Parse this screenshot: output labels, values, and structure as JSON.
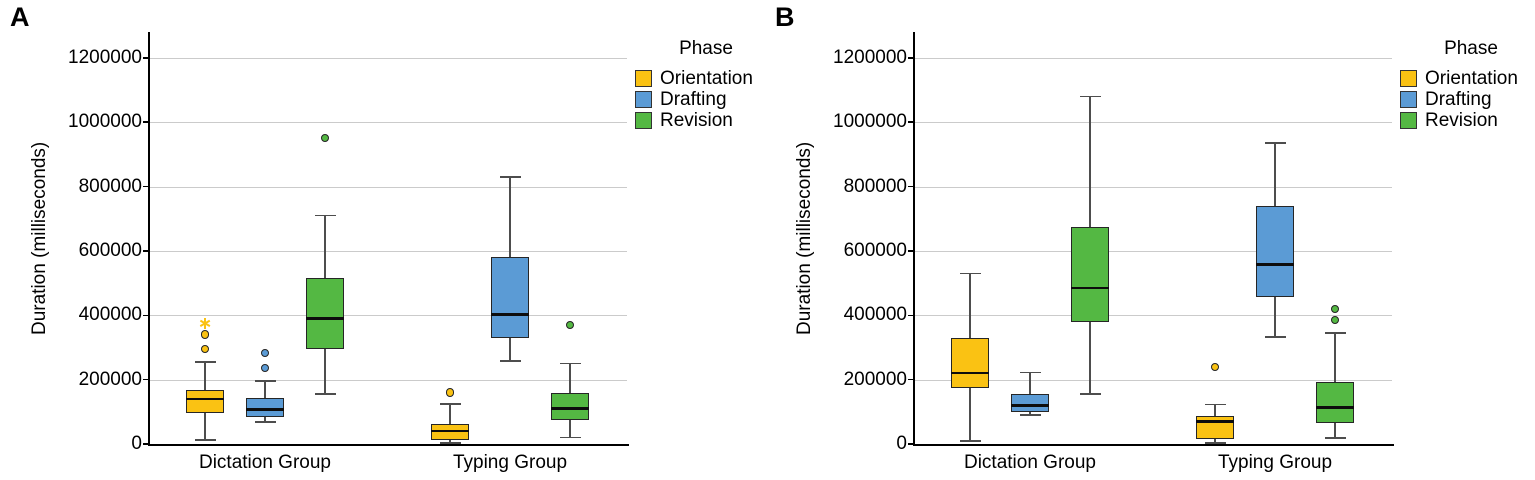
{
  "figure": {
    "background_color": "#ffffff",
    "grid_color": "#cbcbcb",
    "axis_color": "#000000",
    "whisker_color": "#4d4d4d",
    "box_border_color": "#262626",
    "median_color": "#0d0d0d"
  },
  "chart_data": [
    {
      "type": "boxplot",
      "panel": "A",
      "title": "",
      "xlabel": "",
      "ylabel": "Duration (milliseconds)",
      "ylim": [
        0,
        1280000
      ],
      "yticks": [
        0,
        200000,
        400000,
        600000,
        800000,
        1000000,
        1200000
      ],
      "grid": "horizontal",
      "categories": [
        "Dictation Group",
        "Typing Group"
      ],
      "legend": {
        "title": "Phase",
        "position": "outside-top-right",
        "items": [
          {
            "label": "Orientation",
            "color": "#FAC213"
          },
          {
            "label": "Drafting",
            "color": "#5B9BD5"
          },
          {
            "label": "Revision",
            "color": "#54B843"
          }
        ]
      },
      "groups": [
        {
          "category": "Dictation Group",
          "boxes": [
            {
              "phase": "Orientation",
              "color": "#FAC213",
              "whisker_low": 12000,
              "q1": 96000,
              "median": 140000,
              "q3": 168000,
              "whisker_high": 255000,
              "outliers": [
                295000,
                340000
              ],
              "extreme_outliers": [
                375000
              ]
            },
            {
              "phase": "Drafting",
              "color": "#5B9BD5",
              "whisker_low": 68000,
              "q1": 85000,
              "median": 108000,
              "q3": 142000,
              "whisker_high": 195000,
              "outliers": [
                236000,
                282000
              ],
              "extreme_outliers": []
            },
            {
              "phase": "Revision",
              "color": "#54B843",
              "whisker_low": 155000,
              "q1": 295000,
              "median": 390000,
              "q3": 515000,
              "whisker_high": 710000,
              "outliers": [
                950000
              ],
              "extreme_outliers": []
            }
          ]
        },
        {
          "category": "Typing Group",
          "boxes": [
            {
              "phase": "Orientation",
              "color": "#FAC213",
              "whisker_low": 4000,
              "q1": 12000,
              "median": 40000,
              "q3": 63000,
              "whisker_high": 124000,
              "outliers": [
                160000
              ],
              "extreme_outliers": []
            },
            {
              "phase": "Drafting",
              "color": "#5B9BD5",
              "whisker_low": 257000,
              "q1": 330000,
              "median": 402000,
              "q3": 580000,
              "whisker_high": 830000,
              "outliers": [],
              "extreme_outliers": []
            },
            {
              "phase": "Revision",
              "color": "#54B843",
              "whisker_low": 20000,
              "q1": 74000,
              "median": 110000,
              "q3": 160000,
              "whisker_high": 250000,
              "outliers": [
                370000
              ],
              "extreme_outliers": []
            }
          ]
        }
      ]
    },
    {
      "type": "boxplot",
      "panel": "B",
      "title": "",
      "xlabel": "",
      "ylabel": "Duration (milliseconds)",
      "ylim": [
        0,
        1280000
      ],
      "yticks": [
        0,
        200000,
        400000,
        600000,
        800000,
        1000000,
        1200000
      ],
      "grid": "horizontal",
      "categories": [
        "Dictation Group",
        "Typing Group"
      ],
      "legend": {
        "title": "Phase",
        "position": "outside-top-right",
        "items": [
          {
            "label": "Orientation",
            "color": "#FAC213"
          },
          {
            "label": "Drafting",
            "color": "#5B9BD5"
          },
          {
            "label": "Revision",
            "color": "#54B843"
          }
        ]
      },
      "groups": [
        {
          "category": "Dictation Group",
          "boxes": [
            {
              "phase": "Orientation",
              "color": "#FAC213",
              "whisker_low": 10000,
              "q1": 175000,
              "median": 220000,
              "q3": 330000,
              "whisker_high": 530000,
              "outliers": [],
              "extreme_outliers": []
            },
            {
              "phase": "Drafting",
              "color": "#5B9BD5",
              "whisker_low": 90000,
              "q1": 100000,
              "median": 120000,
              "q3": 155000,
              "whisker_high": 222000,
              "outliers": [],
              "extreme_outliers": []
            },
            {
              "phase": "Revision",
              "color": "#54B843",
              "whisker_low": 155000,
              "q1": 380000,
              "median": 485000,
              "q3": 675000,
              "whisker_high": 1080000,
              "outliers": [],
              "extreme_outliers": []
            }
          ]
        },
        {
          "category": "Typing Group",
          "boxes": [
            {
              "phase": "Orientation",
              "color": "#FAC213",
              "whisker_low": 4000,
              "q1": 15000,
              "median": 70000,
              "q3": 86000,
              "whisker_high": 123000,
              "outliers": [
                240000
              ],
              "extreme_outliers": []
            },
            {
              "phase": "Drafting",
              "color": "#5B9BD5",
              "whisker_low": 333000,
              "q1": 457000,
              "median": 558000,
              "q3": 740000,
              "whisker_high": 935000,
              "outliers": [],
              "extreme_outliers": []
            },
            {
              "phase": "Revision",
              "color": "#54B843",
              "whisker_low": 18000,
              "q1": 65000,
              "median": 113000,
              "q3": 192000,
              "whisker_high": 345000,
              "outliers": [
                385000,
                420000
              ],
              "extreme_outliers": []
            }
          ]
        }
      ]
    }
  ]
}
